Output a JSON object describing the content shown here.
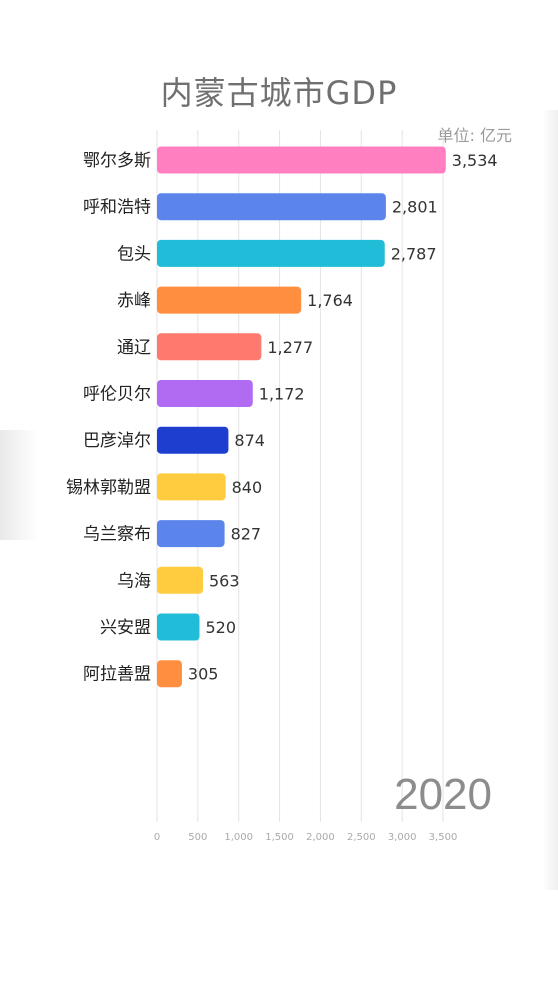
{
  "header": {
    "title": "内蒙古城市GDP",
    "unit": "单位: 亿元",
    "year": "2020"
  },
  "chart_data": {
    "type": "bar",
    "orientation": "horizontal",
    "title": "内蒙古城市GDP",
    "categories": [
      "鄂尔多斯",
      "呼和浩特",
      "包头",
      "赤峰",
      "通辽",
      "呼伦贝尔",
      "巴彦淖尔",
      "锡林郭勒盟",
      "乌兰察布",
      "乌海",
      "兴安盟",
      "阿拉善盟"
    ],
    "values": [
      3534,
      2801,
      2787,
      1764,
      1277,
      1172,
      874,
      840,
      827,
      563,
      520,
      305
    ],
    "value_labels": [
      "3,534",
      "2,801",
      "2,787",
      "1,764",
      "1,277",
      "1,172",
      "874",
      "840",
      "827",
      "563",
      "520",
      "305"
    ],
    "colors": [
      "#FF7FC1",
      "#5B85EA",
      "#21BCD7",
      "#FF8E3E",
      "#FF7A6E",
      "#B06BF2",
      "#1E3ECF",
      "#FFCC3F",
      "#5B85EA",
      "#FFCC3F",
      "#21BCD7",
      "#FF8E3E"
    ],
    "xlim": [
      0,
      3600
    ],
    "x_ticks": [
      0,
      500,
      1000,
      1500,
      2000,
      2500,
      3000,
      3500
    ],
    "x_tick_labels": [
      "0",
      "500",
      "1,000",
      "1,500",
      "2,000",
      "2,500",
      "3,000",
      "3,500"
    ],
    "grid": true,
    "xlabel": "",
    "ylabel": ""
  }
}
